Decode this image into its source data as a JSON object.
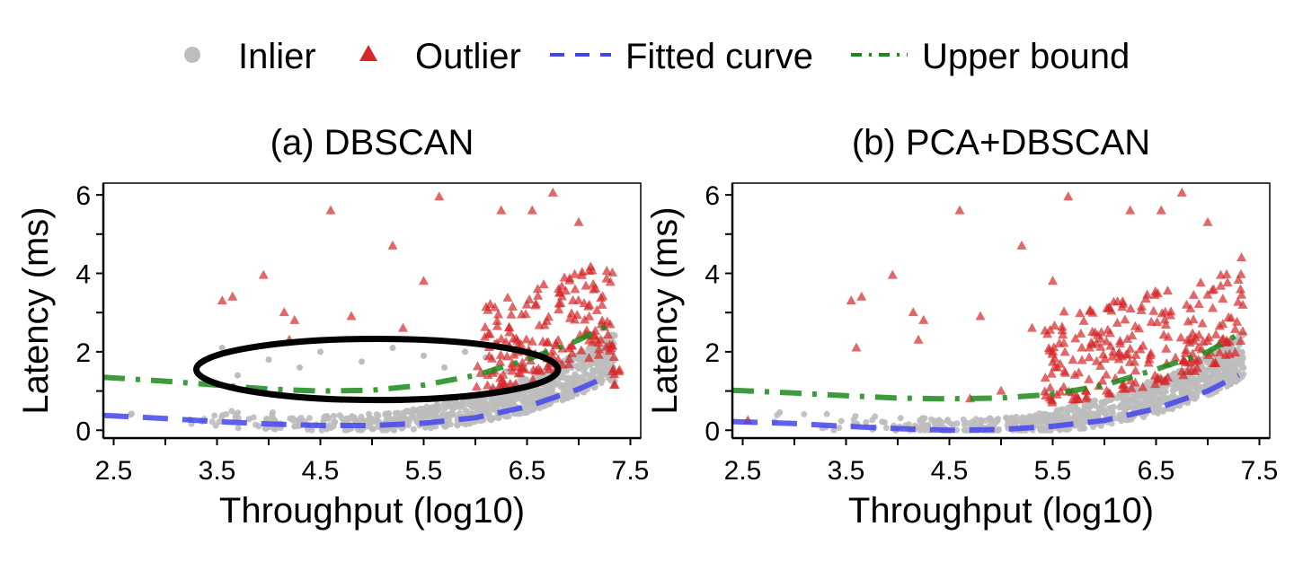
{
  "legend": {
    "items": [
      {
        "label": "Inlier",
        "symbol": "circle",
        "color": "#bdbdbd"
      },
      {
        "label": "Outlier",
        "symbol": "triangle",
        "color": "#d62728"
      },
      {
        "label": "Fitted curve",
        "symbol": "dashed-line",
        "color": "#4444ee"
      },
      {
        "label": "Upper bound",
        "symbol": "dotdash-line",
        "color": "#1a8a1a"
      }
    ]
  },
  "chart_data": [
    {
      "type": "scatter",
      "title": "(a) DBSCAN",
      "xlabel": "Throughput (log10)",
      "ylabel": "Latency (ms)",
      "xlim": [
        2.4,
        7.6
      ],
      "ylim": [
        -0.2,
        6.3
      ],
      "xticks": [
        "2.5",
        "3.5",
        "4.5",
        "5.5",
        "6.5",
        "7.5"
      ],
      "yticks": [
        "0",
        "2",
        "4",
        "6"
      ],
      "fitted_curve": [
        [
          2.4,
          0.38
        ],
        [
          3.0,
          0.3
        ],
        [
          3.5,
          0.22
        ],
        [
          4.0,
          0.16
        ],
        [
          4.5,
          0.12
        ],
        [
          5.0,
          0.12
        ],
        [
          5.5,
          0.18
        ],
        [
          6.0,
          0.32
        ],
        [
          6.5,
          0.6
        ],
        [
          7.0,
          1.05
        ],
        [
          7.3,
          1.4
        ]
      ],
      "upper_bound": [
        [
          2.4,
          1.35
        ],
        [
          3.0,
          1.25
        ],
        [
          3.5,
          1.15
        ],
        [
          4.0,
          1.05
        ],
        [
          4.5,
          1.0
        ],
        [
          5.0,
          1.02
        ],
        [
          5.5,
          1.15
        ],
        [
          6.0,
          1.4
        ],
        [
          6.5,
          1.8
        ],
        [
          7.0,
          2.3
        ],
        [
          7.3,
          2.7
        ]
      ],
      "annotation": {
        "shape": "ellipse",
        "cx": 5.05,
        "cy": 1.55,
        "rx": 1.75,
        "ry": 0.78
      },
      "outliers_highlight": [
        [
          3.55,
          3.3
        ],
        [
          3.65,
          3.4
        ],
        [
          3.95,
          3.95
        ],
        [
          4.15,
          3.0
        ],
        [
          4.25,
          2.8
        ],
        [
          4.6,
          5.6
        ],
        [
          5.2,
          4.7
        ],
        [
          5.65,
          5.95
        ],
        [
          5.5,
          3.8
        ],
        [
          6.25,
          5.6
        ],
        [
          6.55,
          5.6
        ],
        [
          6.75,
          6.05
        ],
        [
          7.0,
          5.3
        ],
        [
          4.8,
          2.9
        ],
        [
          5.3,
          2.6
        ],
        [
          4.2,
          2.3
        ]
      ],
      "inliers_highlight": [
        [
          3.55,
          2.1
        ],
        [
          3.7,
          1.4
        ],
        [
          4.0,
          1.8
        ],
        [
          4.3,
          1.6
        ],
        [
          4.5,
          2.0
        ],
        [
          4.9,
          1.75
        ],
        [
          5.2,
          2.1
        ],
        [
          5.5,
          1.9
        ],
        [
          5.7,
          1.6
        ],
        [
          5.9,
          2.0
        ],
        [
          6.1,
          1.85
        ],
        [
          6.3,
          1.5
        ]
      ]
    },
    {
      "type": "scatter",
      "title": "(b) PCA+DBSCAN",
      "xlabel": "Throughput (log10)",
      "ylabel": "Latency (ms)",
      "xlim": [
        2.4,
        7.6
      ],
      "ylim": [
        -0.2,
        6.3
      ],
      "xticks": [
        "2.5",
        "3.5",
        "4.5",
        "5.5",
        "6.5",
        "7.5"
      ],
      "yticks": [
        "0",
        "2",
        "4",
        "6"
      ],
      "fitted_curve": [
        [
          2.4,
          0.22
        ],
        [
          3.0,
          0.17
        ],
        [
          3.5,
          0.1
        ],
        [
          4.0,
          0.04
        ],
        [
          4.5,
          0.0
        ],
        [
          5.0,
          0.02
        ],
        [
          5.5,
          0.1
        ],
        [
          6.0,
          0.25
        ],
        [
          6.5,
          0.55
        ],
        [
          7.0,
          1.0
        ],
        [
          7.3,
          1.4
        ]
      ],
      "upper_bound": [
        [
          2.4,
          1.02
        ],
        [
          3.0,
          0.95
        ],
        [
          3.5,
          0.88
        ],
        [
          4.0,
          0.82
        ],
        [
          4.5,
          0.8
        ],
        [
          5.0,
          0.82
        ],
        [
          5.5,
          0.92
        ],
        [
          6.0,
          1.15
        ],
        [
          6.5,
          1.55
        ],
        [
          7.0,
          2.0
        ],
        [
          7.3,
          2.45
        ]
      ],
      "outliers_highlight": [
        [
          2.55,
          0.25
        ],
        [
          3.55,
          3.3
        ],
        [
          3.65,
          3.4
        ],
        [
          3.95,
          3.95
        ],
        [
          4.15,
          3.0
        ],
        [
          4.25,
          2.8
        ],
        [
          4.6,
          5.6
        ],
        [
          5.2,
          4.7
        ],
        [
          5.65,
          5.95
        ],
        [
          5.5,
          3.8
        ],
        [
          6.25,
          5.6
        ],
        [
          6.55,
          5.6
        ],
        [
          6.75,
          6.05
        ],
        [
          7.0,
          5.3
        ],
        [
          4.8,
          2.9
        ],
        [
          5.3,
          2.6
        ],
        [
          4.2,
          2.3
        ],
        [
          3.6,
          2.1
        ],
        [
          4.7,
          0.8
        ],
        [
          5.0,
          1.0
        ]
      ]
    }
  ]
}
